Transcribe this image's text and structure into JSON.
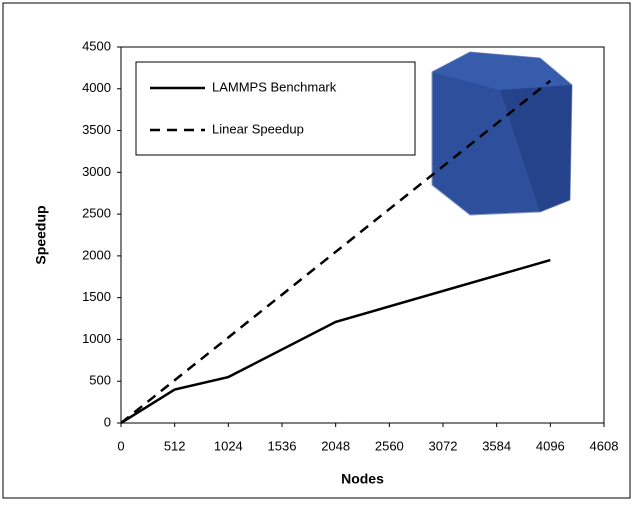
{
  "chart_data": {
    "type": "line",
    "x_label": "Nodes",
    "y_label": "Speedup",
    "xlim": [
      0,
      4608
    ],
    "xticks": [
      0,
      512,
      1024,
      1536,
      2048,
      2560,
      3072,
      3584,
      4096,
      4608
    ],
    "ylim": [
      0,
      4500
    ],
    "yticks": [
      0,
      500,
      1000,
      1500,
      2000,
      2500,
      3000,
      3500,
      4000,
      4500
    ],
    "series": [
      {
        "name": "LAMMPS Benchmark",
        "color": "#000000",
        "dash": "solid",
        "x": [
          0,
          512,
          1024,
          2048,
          4096
        ],
        "values": [
          0,
          400,
          550,
          1210,
          1950
        ]
      },
      {
        "name": "Linear Speedup",
        "color": "#000000",
        "dash": "dashed",
        "x": [
          0,
          4096
        ],
        "values": [
          0,
          4096
        ]
      }
    ]
  }
}
